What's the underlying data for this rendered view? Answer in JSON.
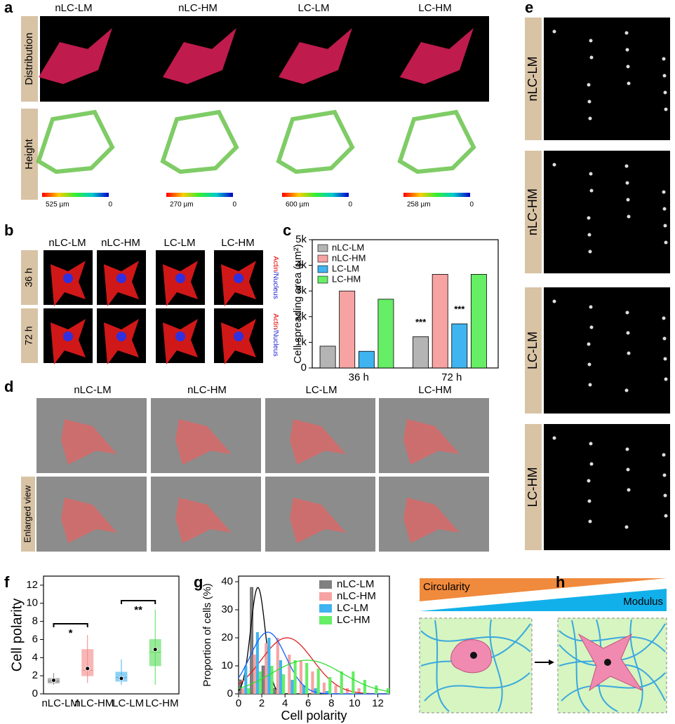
{
  "figure": {
    "panel_letters": [
      "a",
      "b",
      "c",
      "d",
      "e",
      "f",
      "g",
      "h"
    ],
    "groups": [
      "nLC-LM",
      "nLC-HM",
      "LC-LM",
      "LC-HM"
    ],
    "a_rows": [
      "Distribution",
      "Height"
    ],
    "a_scale_max": [
      "525 µm",
      "270 µm",
      "600 µm",
      "258 µm"
    ],
    "a_scale_min": [
      "0",
      "0",
      "0",
      "0"
    ],
    "b_rows": [
      "36 h",
      "72 h"
    ],
    "b_stain_actin": [
      "Actin",
      "Actin"
    ],
    "b_stain_nucleus": [
      "/Nucleus",
      "/Nucleus"
    ],
    "d_row": "Enlarged view",
    "h_top": "Circularity",
    "h_bottom": "Modulus"
  },
  "chart_data": [
    {
      "type": "bar",
      "ylabel": "Cell spreading area (µm²)",
      "categories": [
        "36 h",
        "72 h"
      ],
      "series": [
        {
          "name": "nLC-LM",
          "color": "#b4b4b4",
          "values": [
            850,
            1220
          ]
        },
        {
          "name": "nLC-HM",
          "color": "#f7a3a3",
          "values": [
            3000,
            3650
          ]
        },
        {
          "name": "LC-LM",
          "color": "#3fb4f0",
          "values": [
            650,
            1720
          ]
        },
        {
          "name": "LC-HM",
          "color": "#66ee66",
          "values": [
            2680,
            3650
          ]
        }
      ],
      "annotations": [
        "***",
        "***"
      ],
      "ylim": [
        0,
        5000
      ],
      "yticks": [
        0,
        {
          "value": 1000,
          "label": "1k"
        },
        {
          "value": 2000,
          "label": "2k"
        },
        {
          "value": 3000,
          "label": "3k"
        },
        {
          "value": 4000,
          "label": "4k"
        },
        {
          "value": 5000,
          "label": "5k"
        }
      ]
    },
    {
      "type": "box",
      "ylabel": "Cell polarity",
      "categories": [
        "nLC-LM",
        "nLC-HM",
        "LC-LM",
        "LC-HM"
      ],
      "colors": [
        "#808080",
        "#f48888",
        "#3fb4f0",
        "#55dd55"
      ],
      "whisker_low": [
        1.0,
        1.2,
        1.0,
        1.0
      ],
      "q1": [
        1.2,
        2.0,
        1.4,
        3.1
      ],
      "median": [
        1.4,
        2.6,
        1.8,
        4.6
      ],
      "q3": [
        1.7,
        4.9,
        2.4,
        6.0
      ],
      "whisker_high": [
        2.3,
        6.5,
        3.8,
        9.3
      ],
      "mean": [
        1.5,
        2.8,
        1.7,
        4.9
      ],
      "annotations": [
        "*",
        "**"
      ],
      "ylim": [
        0,
        13
      ],
      "yticks": [
        0,
        2,
        4,
        6,
        8,
        10,
        12
      ]
    },
    {
      "type": "histogram",
      "xlabel": "Cell polarity",
      "ylabel": "Proportion of cells (%)",
      "bins": [
        0,
        1,
        2,
        3,
        4,
        5,
        6,
        7,
        8,
        9,
        10,
        11,
        12,
        13
      ],
      "series": [
        {
          "name": "nLC-LM",
          "color": "#808080",
          "values": [
            5,
            38,
            10,
            2,
            0,
            0,
            0,
            0,
            0,
            0,
            0,
            0,
            0
          ]
        },
        {
          "name": "nLC-HM",
          "color": "#f7a3a3",
          "values": [
            2,
            14,
            18,
            20,
            14,
            12,
            8,
            4,
            3,
            2,
            2,
            0,
            0
          ]
        },
        {
          "name": "LC-LM",
          "color": "#3fb4f0",
          "values": [
            10,
            22,
            20,
            12,
            5,
            3,
            2,
            1,
            0,
            0,
            0,
            0,
            0
          ]
        },
        {
          "name": "LC-HM",
          "color": "#66ee66",
          "values": [
            2,
            8,
            10,
            7,
            12,
            11,
            9,
            6,
            8,
            8,
            5,
            3,
            2
          ]
        }
      ],
      "xlim": [
        0,
        13
      ],
      "xticks": [
        0,
        2,
        4,
        6,
        8,
        10,
        12
      ],
      "ylim": [
        0,
        42
      ],
      "yticks": [
        0,
        10,
        20,
        30,
        40
      ]
    }
  ]
}
